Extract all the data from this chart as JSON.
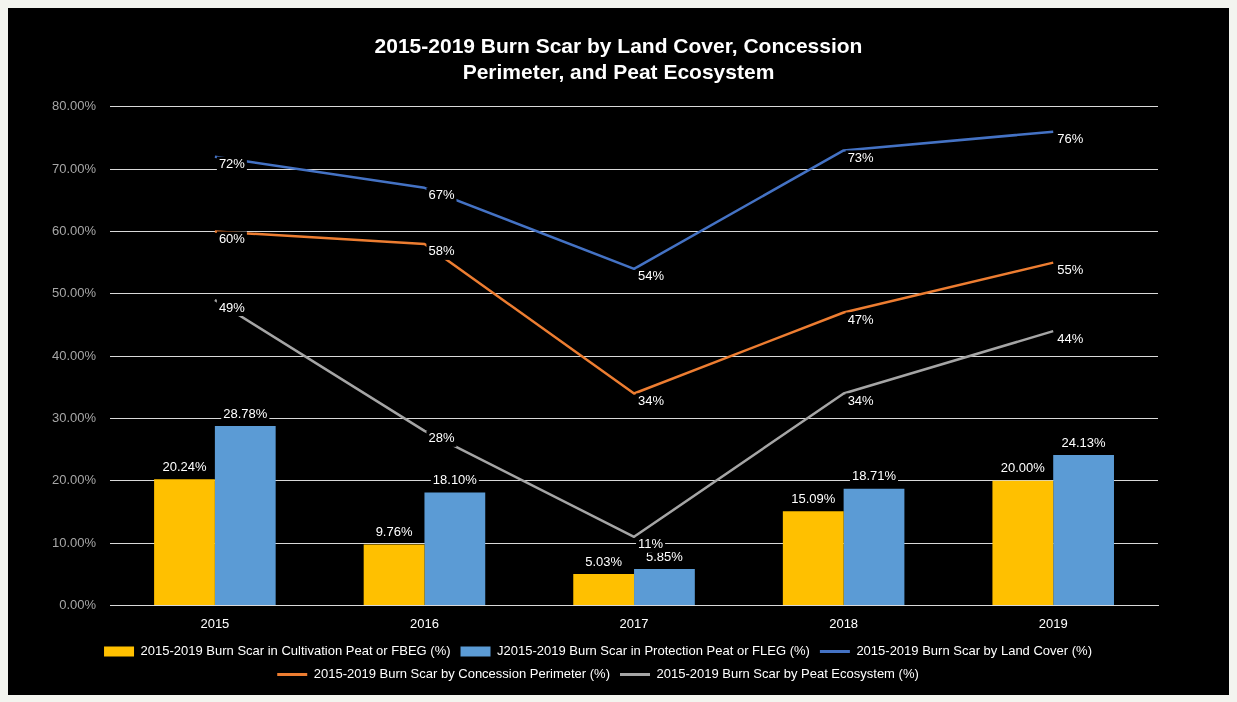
{
  "chart_data": {
    "type": "bar",
    "title": "2015-2019 Burn Scar by Land Cover, Concession Perimeter, and Peat Ecosystem",
    "categories": [
      "2015",
      "2016",
      "2017",
      "2018",
      "2019"
    ],
    "series": [
      {
        "name": "2015-2019 Burn Scar in Cultivation Peat or FBEG (%)",
        "color": "#ffc000",
        "values": [
          20.24,
          9.76,
          5.03,
          15.09,
          20.0
        ],
        "value_labels": [
          "20.24%",
          "9.76%",
          "5.03%",
          "15.09%",
          "20.00%"
        ]
      },
      {
        "name": "J2015-2019 Burn Scar in Protection Peat or FLEG (%)",
        "color": "#5b9bd5",
        "values": [
          28.78,
          18.1,
          5.85,
          18.71,
          24.13
        ],
        "value_labels": [
          "28.78%",
          "18.10%",
          "5.85%",
          "18.71%",
          "24.13%"
        ]
      },
      {
        "name": "2015-2019 Burn Scar by Land Cover (%)",
        "type": "line",
        "color": "#4472c4",
        "values": [
          72,
          67,
          54,
          73,
          76
        ],
        "value_labels": [
          "72%",
          "67%",
          "54%",
          "73%",
          "76%"
        ]
      },
      {
        "name": "2015-2019 Burn Scar by Concession Perimeter (%)",
        "type": "line",
        "color": "#ed7d31",
        "values": [
          60,
          58,
          34,
          47,
          55
        ],
        "value_labels": [
          "60%",
          "58%",
          "34%",
          "47%",
          "55%"
        ]
      },
      {
        "name": "2015-2019 Burn Scar by Peat Ecosystem (%)",
        "type": "line",
        "color": "#a5a5a5",
        "values": [
          49,
          28,
          11,
          34,
          44
        ],
        "value_labels": [
          "49%",
          "28%",
          "11%",
          "34%",
          "44%"
        ]
      }
    ],
    "ylim": [
      0,
      80
    ],
    "yticks": [
      {
        "value": 0,
        "label": "0.00%"
      },
      {
        "value": 10,
        "label": "10.00%"
      },
      {
        "value": 20,
        "label": "20.00%"
      },
      {
        "value": 30,
        "label": "30.00%"
      },
      {
        "value": 40,
        "label": "40.00%"
      },
      {
        "value": 50,
        "label": "50.00%"
      },
      {
        "value": 60,
        "label": "60.00%"
      },
      {
        "value": 70,
        "label": "70.00%"
      },
      {
        "value": 80,
        "label": "80.00%"
      }
    ],
    "grid": "y",
    "legend": "bottom",
    "marker": "none",
    "line_style": "solid"
  }
}
